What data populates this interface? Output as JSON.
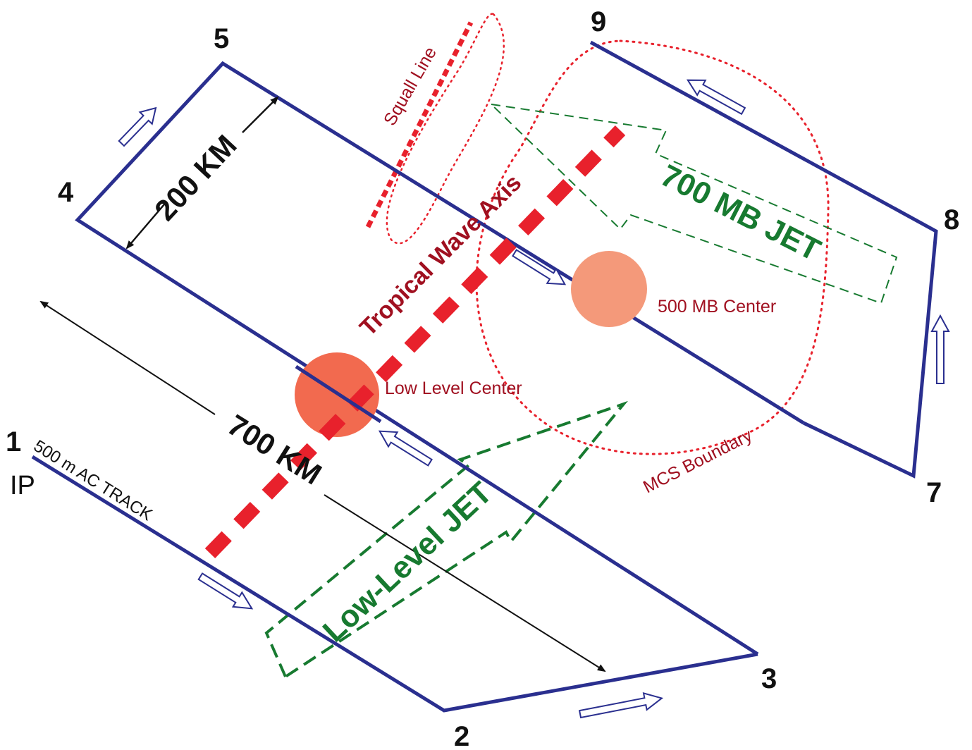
{
  "waypoints": {
    "wp1": "1",
    "wp2": "2",
    "wp3": "3",
    "wp4": "4",
    "wp5": "5",
    "wp7": "7",
    "wp8": "8",
    "wp9": "9",
    "ip": "IP"
  },
  "labels": {
    "ac_track": "500 m AC TRACK",
    "distance_200": "200 KM",
    "distance_700": "700 KM",
    "squall_line": "Squall Line",
    "tropical_wave_axis": "Tropical Wave Axis",
    "jet_700mb": "700 MB JET",
    "low_level_jet": "Low-Level JET",
    "center_500mb": "500 MB Center",
    "low_level_center": "Low Level Center",
    "mcs_boundary": "MCS Boundary"
  },
  "colors": {
    "track": "#2a2f8f",
    "red_feature": "#e8212c",
    "red_text": "#a01020",
    "jet_green": "#177a30",
    "low_center": "#f26a4f",
    "mid_center": "#f4997a",
    "text": "#111111"
  }
}
